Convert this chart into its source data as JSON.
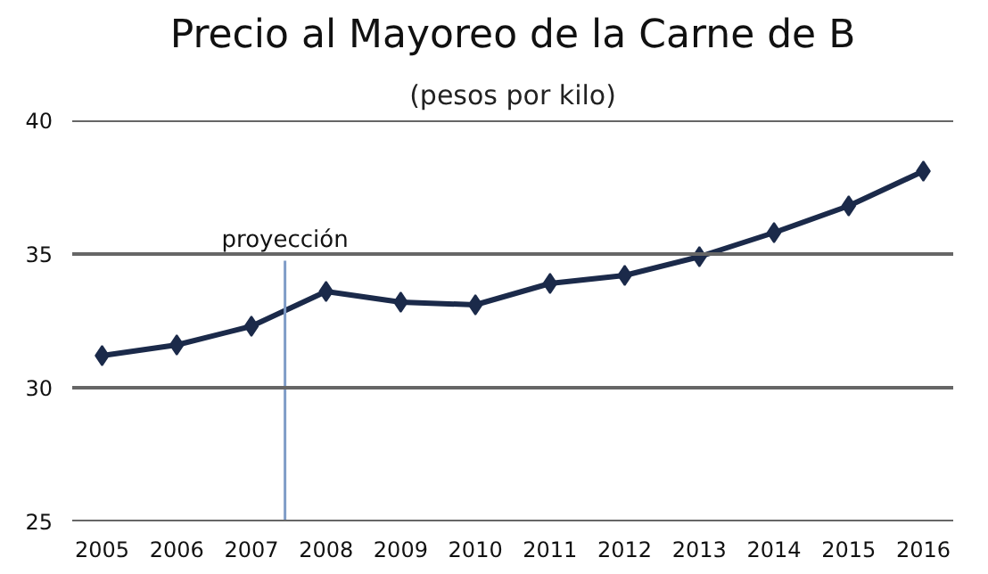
{
  "chart_data": {
    "type": "line",
    "title": "Precio al Mayoreo de la Carne de B",
    "subtitle": "(pesos por kilo)",
    "x": [
      2005,
      2006,
      2007,
      2008,
      2009,
      2010,
      2011,
      2012,
      2013,
      2014,
      2015,
      2016
    ],
    "series": [
      {
        "color": "#1b2a4a",
        "values": [
          31.2,
          31.6,
          32.3,
          33.6,
          33.2,
          33.1,
          33.9,
          34.2,
          34.9,
          35.8,
          36.8,
          38.1
        ]
      }
    ],
    "xlim": [
      2004.6,
      2016.4
    ],
    "xticks": [
      2005,
      2006,
      2007,
      2008,
      2009,
      2010,
      2011,
      2012,
      2013,
      2014,
      2015,
      2016
    ],
    "ylim": [
      25,
      40
    ],
    "yticks": [
      25,
      30,
      35,
      40
    ],
    "ref_lines": [
      {
        "axis": "x",
        "value": 2007.45,
        "label": "proyección",
        "color": "#7f9cc7"
      }
    ],
    "grid": "y",
    "marker": "diamond",
    "line_style": "solid"
  }
}
